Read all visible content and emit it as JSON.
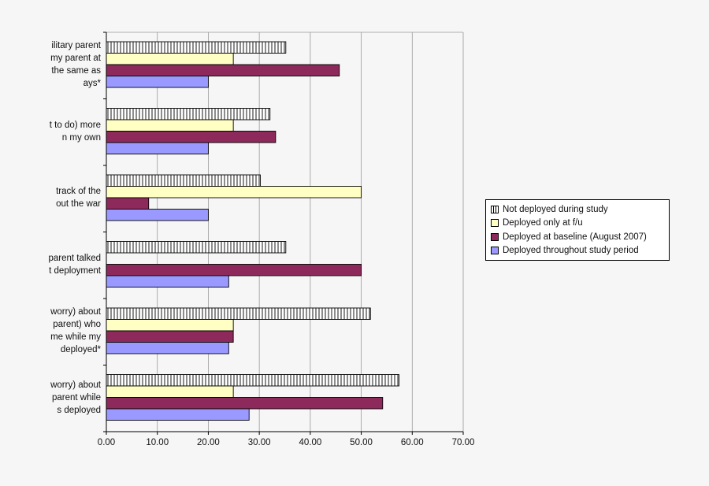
{
  "chart_data": {
    "type": "bar",
    "orientation": "horizontal",
    "title": "",
    "xlabel": "",
    "ylabel": "",
    "xlim": [
      0,
      70
    ],
    "x_ticks": [
      "0.00",
      "10.00",
      "20.00",
      "30.00",
      "40.00",
      "50.00",
      "60.00",
      "70.00"
    ],
    "grid": true,
    "legend_position": "right",
    "categories": [
      [
        "ilitary parent",
        "my parent at",
        "the same as",
        "ays*"
      ],
      [
        "t to do) more",
        "n my own"
      ],
      [
        "track of the",
        "out the war"
      ],
      [
        "parent talked",
        "t deployment"
      ],
      [
        "worry) about",
        "parent) who",
        "me while my",
        "deployed*"
      ],
      [
        "worry) about",
        "parent while",
        "s deployed"
      ]
    ],
    "series": [
      {
        "name": "Not deployed during study",
        "color": "#ffffff",
        "pattern": "vertical-stripes",
        "values": [
          35.2,
          32.1,
          30.2,
          35.2,
          51.8,
          57.4
        ]
      },
      {
        "name": "Deployed only at f/u",
        "color": "#ffffc4",
        "pattern": "solid",
        "values": [
          24.9,
          24.9,
          50.0,
          0,
          24.9,
          24.9
        ]
      },
      {
        "name": "Deployed at baseline (August 2007)",
        "color": "#8e2a5b",
        "pattern": "solid",
        "values": [
          45.7,
          33.2,
          8.3,
          50.0,
          24.9,
          54.2
        ]
      },
      {
        "name": "Deployed throughout study period",
        "color": "#9999ff",
        "pattern": "solid",
        "values": [
          20.0,
          20.0,
          20.0,
          24.0,
          24.0,
          28.0
        ]
      }
    ]
  }
}
